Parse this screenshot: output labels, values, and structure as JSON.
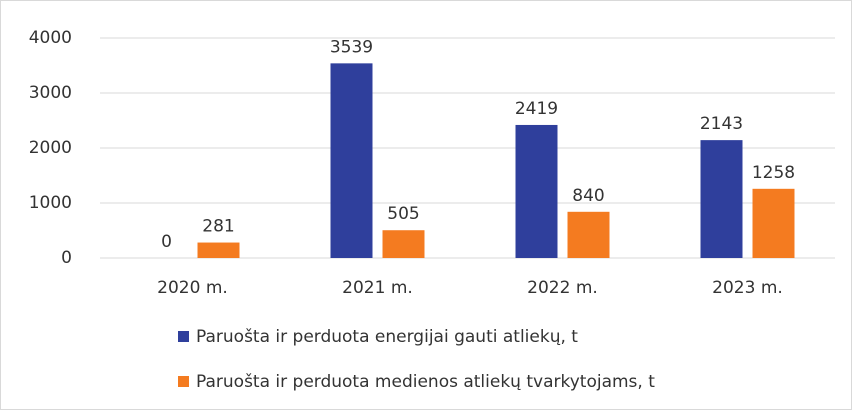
{
  "chart_data": {
    "type": "bar",
    "categories": [
      "2020 m.",
      "2021 m.",
      "2022 m.",
      "2023 m."
    ],
    "series": [
      {
        "name": "Paruošta ir perduota energijai gauti atliekų, t",
        "color": "#2f3f9c",
        "values": [
          0,
          3539,
          2419,
          2143
        ]
      },
      {
        "name": "Paruošta ir perduota medienos atliekų tvarkytojams, t",
        "color": "#f47b20",
        "values": [
          281,
          505,
          840,
          1258
        ]
      }
    ],
    "ylim": [
      0,
      4000
    ],
    "yticks": [
      0,
      1000,
      2000,
      3000,
      4000
    ],
    "grid": true,
    "legend": "bottom"
  }
}
